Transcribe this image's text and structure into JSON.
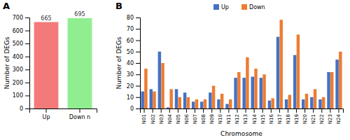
{
  "chart_data": [
    {
      "type": "bar",
      "title": "A",
      "categories": [
        "Up",
        "Down n"
      ],
      "values": [
        665,
        695
      ],
      "colors": [
        "#f47a7a",
        "#90ee90"
      ],
      "ylabel": "Number of DEGs",
      "ylim": [
        0,
        700
      ],
      "yticks": [
        0,
        100,
        200,
        300,
        400,
        500,
        600,
        700
      ],
      "data_labels": true
    },
    {
      "type": "bar",
      "title": "B",
      "categories": [
        "N01",
        "N02",
        "N03",
        "N04",
        "N05",
        "N06",
        "N07",
        "N08",
        "N09",
        "N10",
        "N11",
        "N12",
        "N13",
        "N14",
        "N15",
        "N16",
        "N17",
        "N18",
        "N19",
        "N20",
        "N21",
        "N22",
        "N23",
        "N24"
      ],
      "series": [
        {
          "name": "Up",
          "color": "#4472c4",
          "values": [
            15,
            17,
            50,
            1,
            17,
            14,
            6,
            6,
            14,
            8,
            4,
            27,
            27,
            28,
            27,
            7,
            63,
            8,
            47,
            8,
            10,
            8,
            32,
            43
          ]
        },
        {
          "name": "Down",
          "color": "#ed7d31",
          "values": [
            35,
            15,
            40,
            17,
            10,
            10,
            8,
            8,
            20,
            13,
            8,
            32,
            45,
            35,
            30,
            9,
            78,
            12,
            65,
            13,
            17,
            10,
            32,
            50
          ]
        }
      ],
      "xlabel": "Chromosome",
      "ylabel": "Number of DEGs",
      "ylim": [
        0,
        80
      ],
      "yticks": [
        0,
        10,
        20,
        30,
        40,
        50,
        60,
        70,
        80
      ],
      "legend": "top"
    }
  ]
}
